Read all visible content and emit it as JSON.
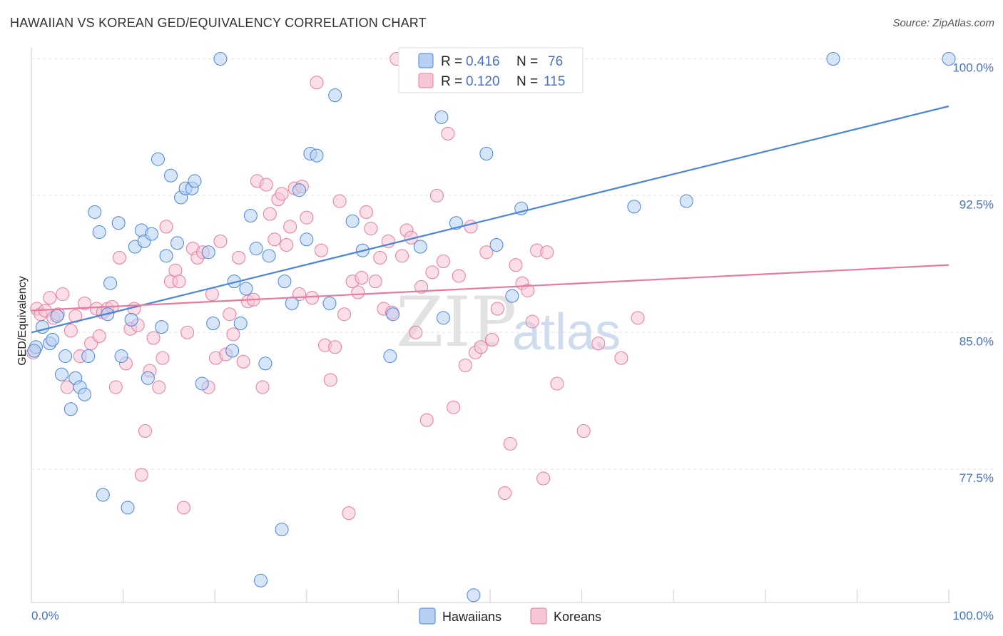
{
  "title": "HAWAIIAN VS KOREAN GED/EQUIVALENCY CORRELATION CHART",
  "source": "Source: ZipAtlas.com",
  "watermark": {
    "zip": "ZIP",
    "atlas": "atlas"
  },
  "colors": {
    "hawaiians": "#4a86d8",
    "koreans": "#e87aa0",
    "hawaiians_fill": "#b7d0f2",
    "koreans_fill": "#f6c5d5",
    "tick": "#4472c4"
  },
  "chart_data": {
    "type": "scatter",
    "ylabel": "GED/Equivalency",
    "xlim": [
      0,
      100
    ],
    "ylim": [
      70.2,
      100.8
    ],
    "x_tick_labels": [
      "0.0%",
      "100.0%"
    ],
    "y_ticks": [
      77.5,
      85.0,
      92.5,
      100.0
    ],
    "y_tick_labels": [
      "77.5%",
      "85.0%",
      "92.5%",
      "100.0%"
    ],
    "grid": true,
    "legend_position": "top-center",
    "stats": [
      {
        "r_label": "R = ",
        "r": "0.416",
        "n_label": "N = ",
        "n": "76"
      },
      {
        "r_label": "R = ",
        "r": "0.120",
        "n_label": "N = ",
        "n": "115"
      }
    ],
    "series": [
      {
        "name": "Hawaiians",
        "trend": {
          "x": [
            0,
            100
          ],
          "y": [
            85.0,
            97.4
          ]
        },
        "points": [
          [
            0.5,
            84.2
          ],
          [
            1.2,
            85.3
          ],
          [
            2.0,
            84.4
          ],
          [
            2.3,
            84.6
          ],
          [
            2.8,
            85.9
          ],
          [
            3.3,
            82.7
          ],
          [
            3.7,
            83.7
          ],
          [
            4.3,
            80.8
          ],
          [
            4.8,
            82.5
          ],
          [
            5.3,
            82.0
          ],
          [
            5.8,
            81.6
          ],
          [
            6.2,
            83.7
          ],
          [
            6.9,
            91.6
          ],
          [
            7.4,
            90.5
          ],
          [
            7.8,
            76.1
          ],
          [
            8.3,
            86.0
          ],
          [
            8.6,
            87.7
          ],
          [
            9.5,
            91.0
          ],
          [
            9.8,
            83.7
          ],
          [
            10.5,
            75.4
          ],
          [
            10.9,
            85.7
          ],
          [
            11.3,
            89.7
          ],
          [
            12.0,
            90.6
          ],
          [
            12.3,
            90.0
          ],
          [
            12.7,
            82.5
          ],
          [
            13.1,
            90.4
          ],
          [
            13.8,
            94.5
          ],
          [
            14.2,
            85.3
          ],
          [
            14.7,
            89.2
          ],
          [
            15.2,
            93.6
          ],
          [
            15.9,
            89.9
          ],
          [
            16.3,
            92.4
          ],
          [
            16.8,
            92.9
          ],
          [
            17.5,
            92.9
          ],
          [
            17.8,
            93.3
          ],
          [
            18.6,
            82.2
          ],
          [
            19.3,
            89.4
          ],
          [
            19.8,
            85.5
          ],
          [
            20.6,
            100.0
          ],
          [
            21.9,
            84.0
          ],
          [
            22.1,
            87.8
          ],
          [
            22.8,
            85.5
          ],
          [
            23.4,
            87.4
          ],
          [
            23.9,
            91.4
          ],
          [
            24.5,
            89.6
          ],
          [
            25.0,
            71.4
          ],
          [
            25.5,
            83.3
          ],
          [
            25.9,
            89.2
          ],
          [
            27.3,
            74.2
          ],
          [
            27.6,
            87.8
          ],
          [
            28.4,
            86.6
          ],
          [
            29.2,
            92.8
          ],
          [
            30.0,
            90.1
          ],
          [
            30.4,
            94.8
          ],
          [
            31.1,
            94.7
          ],
          [
            32.5,
            86.6
          ],
          [
            33.1,
            98.0
          ],
          [
            35.0,
            91.1
          ],
          [
            36.1,
            89.5
          ],
          [
            39.1,
            83.7
          ],
          [
            39.4,
            86.0
          ],
          [
            42.4,
            89.7
          ],
          [
            44.7,
            96.8
          ],
          [
            44.9,
            85.8
          ],
          [
            46.3,
            91.0
          ],
          [
            48.2,
            70.6
          ],
          [
            49.2,
            100.0
          ],
          [
            49.6,
            94.8
          ],
          [
            50.7,
            89.8
          ],
          [
            52.4,
            87.0
          ],
          [
            53.4,
            91.8
          ],
          [
            65.7,
            91.9
          ],
          [
            71.4,
            92.2
          ],
          [
            87.4,
            100.0
          ],
          [
            100.0,
            100.0
          ],
          [
            0.3,
            84.0
          ]
        ]
      },
      {
        "name": "Koreans",
        "trend": {
          "x": [
            0,
            100
          ],
          "y": [
            86.2,
            88.7
          ]
        },
        "points": [
          [
            0.2,
            83.9
          ],
          [
            0.6,
            86.3
          ],
          [
            1.0,
            86.0
          ],
          [
            1.5,
            86.2
          ],
          [
            2.0,
            86.9
          ],
          [
            2.4,
            85.8
          ],
          [
            2.9,
            86.0
          ],
          [
            3.4,
            87.1
          ],
          [
            3.9,
            82.0
          ],
          [
            4.3,
            85.1
          ],
          [
            4.8,
            85.9
          ],
          [
            5.3,
            83.7
          ],
          [
            5.8,
            86.6
          ],
          [
            6.5,
            84.4
          ],
          [
            7.1,
            86.3
          ],
          [
            7.4,
            84.8
          ],
          [
            7.8,
            86.1
          ],
          [
            8.3,
            86.3
          ],
          [
            8.8,
            86.4
          ],
          [
            9.2,
            82.0
          ],
          [
            9.6,
            89.1
          ],
          [
            10.3,
            83.3
          ],
          [
            10.8,
            85.2
          ],
          [
            11.2,
            86.3
          ],
          [
            11.6,
            85.4
          ],
          [
            12.0,
            77.2
          ],
          [
            12.4,
            79.6
          ],
          [
            12.9,
            82.9
          ],
          [
            13.3,
            84.7
          ],
          [
            13.9,
            82.0
          ],
          [
            14.3,
            83.6
          ],
          [
            14.7,
            90.8
          ],
          [
            15.2,
            87.8
          ],
          [
            15.7,
            88.4
          ],
          [
            16.1,
            87.8
          ],
          [
            16.6,
            75.4
          ],
          [
            17.0,
            85.0
          ],
          [
            17.6,
            89.6
          ],
          [
            18.1,
            89.1
          ],
          [
            18.7,
            89.4
          ],
          [
            19.3,
            82.0
          ],
          [
            19.7,
            87.1
          ],
          [
            20.1,
            83.6
          ],
          [
            20.6,
            90.0
          ],
          [
            21.2,
            83.8
          ],
          [
            21.6,
            86.0
          ],
          [
            22.0,
            84.9
          ],
          [
            22.6,
            89.1
          ],
          [
            23.1,
            83.4
          ],
          [
            23.6,
            86.7
          ],
          [
            24.2,
            86.8
          ],
          [
            24.6,
            93.3
          ],
          [
            25.2,
            82.0
          ],
          [
            25.6,
            93.1
          ],
          [
            26.0,
            91.5
          ],
          [
            26.5,
            90.1
          ],
          [
            26.9,
            92.3
          ],
          [
            27.3,
            92.6
          ],
          [
            27.8,
            89.8
          ],
          [
            28.2,
            90.8
          ],
          [
            28.7,
            92.9
          ],
          [
            29.2,
            87.1
          ],
          [
            29.5,
            93.0
          ],
          [
            30.0,
            91.3
          ],
          [
            30.6,
            86.9
          ],
          [
            31.1,
            98.7
          ],
          [
            31.6,
            89.5
          ],
          [
            32.0,
            84.3
          ],
          [
            32.6,
            82.4
          ],
          [
            33.1,
            84.2
          ],
          [
            33.6,
            92.2
          ],
          [
            34.1,
            86.0
          ],
          [
            34.6,
            75.1
          ],
          [
            35.0,
            87.8
          ],
          [
            35.6,
            87.2
          ],
          [
            36.0,
            88.0
          ],
          [
            36.5,
            91.6
          ],
          [
            37.0,
            90.7
          ],
          [
            37.5,
            87.8
          ],
          [
            38.0,
            89.1
          ],
          [
            38.4,
            86.3
          ],
          [
            38.9,
            90.0
          ],
          [
            39.3,
            86.1
          ],
          [
            39.8,
            100.0
          ],
          [
            40.4,
            89.2
          ],
          [
            40.9,
            90.6
          ],
          [
            41.4,
            90.2
          ],
          [
            41.9,
            85.0
          ],
          [
            42.5,
            87.5
          ],
          [
            43.1,
            80.2
          ],
          [
            43.7,
            88.3
          ],
          [
            44.2,
            92.5
          ],
          [
            44.9,
            88.9
          ],
          [
            45.4,
            95.9
          ],
          [
            46.0,
            80.9
          ],
          [
            46.6,
            88.1
          ],
          [
            47.3,
            83.2
          ],
          [
            47.9,
            90.8
          ],
          [
            48.4,
            83.9
          ],
          [
            49.0,
            84.2
          ],
          [
            49.6,
            89.4
          ],
          [
            50.2,
            84.6
          ],
          [
            50.8,
            86.3
          ],
          [
            51.6,
            76.2
          ],
          [
            52.2,
            78.9
          ],
          [
            52.8,
            88.7
          ],
          [
            53.5,
            87.7
          ],
          [
            54.1,
            87.3
          ],
          [
            54.6,
            85.6
          ],
          [
            55.1,
            89.5
          ],
          [
            55.8,
            77.0
          ],
          [
            56.2,
            89.4
          ],
          [
            57.3,
            82.2
          ],
          [
            60.2,
            79.6
          ],
          [
            61.8,
            84.4
          ],
          [
            64.3,
            83.6
          ],
          [
            66.1,
            85.8
          ]
        ]
      }
    ]
  },
  "legend": {
    "hawaiians": "Hawaiians",
    "koreans": "Koreans"
  }
}
